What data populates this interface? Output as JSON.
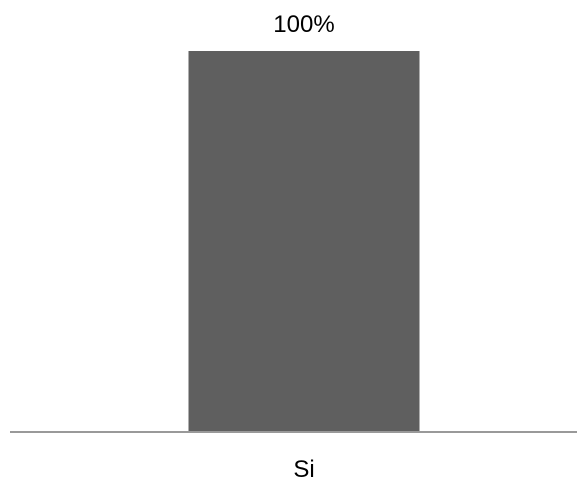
{
  "chart_data": {
    "type": "bar",
    "categories": [
      "Si"
    ],
    "values": [
      100
    ],
    "value_labels": [
      "100%"
    ],
    "title": "",
    "xlabel": "",
    "ylabel": "",
    "ylim": [
      0,
      100
    ],
    "grid": false,
    "legend": "none",
    "colors": {
      "bar": "#5f5f5f",
      "axis": "#999999"
    }
  }
}
